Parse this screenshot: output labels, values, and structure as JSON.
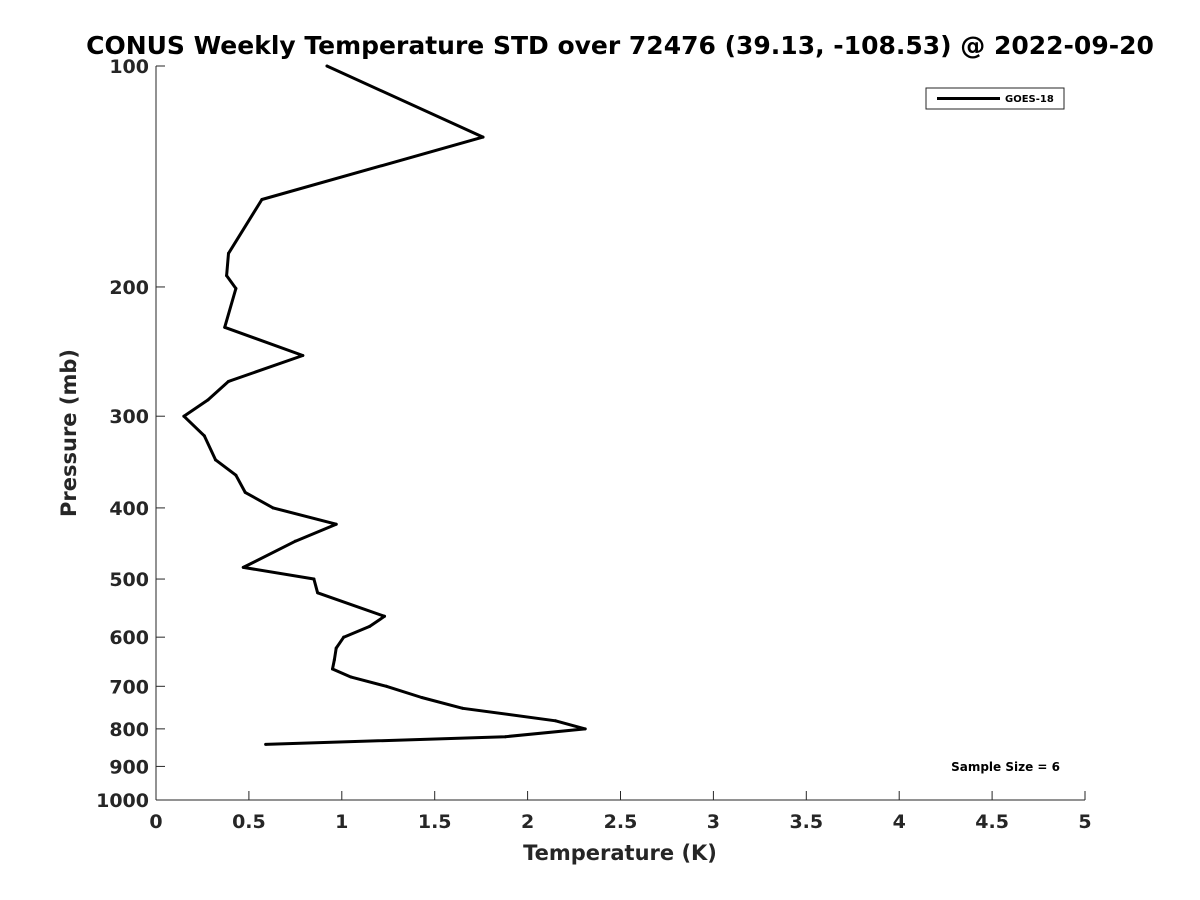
{
  "chart_data": {
    "type": "line",
    "title": "CONUS Weekly Temperature STD over 72476 (39.13, -108.53) @ 2022-09-20",
    "xlabel": "Temperature (K)",
    "ylabel": "Pressure (mb)",
    "xlim": [
      0,
      5
    ],
    "ylim": [
      100,
      1000
    ],
    "y_scale": "log",
    "y_reversed": true,
    "grid": false,
    "legend_position": "top-right",
    "x_ticks": [
      "0",
      "0.5",
      "1",
      "1.5",
      "2",
      "2.5",
      "3",
      "3.5",
      "4",
      "4.5",
      "5"
    ],
    "y_ticks": [
      "100",
      "200",
      "300",
      "400",
      "500",
      "600",
      "700",
      "800",
      "900",
      "1000"
    ],
    "series": [
      {
        "name": "GOES-18",
        "color": "#000000",
        "points": [
          {
            "x": 0.92,
            "y": 100
          },
          {
            "x": 1.76,
            "y": 125
          },
          {
            "x": 0.57,
            "y": 152
          },
          {
            "x": 0.39,
            "y": 180
          },
          {
            "x": 0.38,
            "y": 193
          },
          {
            "x": 0.43,
            "y": 201
          },
          {
            "x": 0.37,
            "y": 227
          },
          {
            "x": 0.79,
            "y": 248
          },
          {
            "x": 0.39,
            "y": 269
          },
          {
            "x": 0.28,
            "y": 285
          },
          {
            "x": 0.15,
            "y": 300
          },
          {
            "x": 0.26,
            "y": 319
          },
          {
            "x": 0.32,
            "y": 344
          },
          {
            "x": 0.43,
            "y": 361
          },
          {
            "x": 0.48,
            "y": 381
          },
          {
            "x": 0.63,
            "y": 400
          },
          {
            "x": 0.97,
            "y": 421
          },
          {
            "x": 0.75,
            "y": 444
          },
          {
            "x": 0.47,
            "y": 482
          },
          {
            "x": 0.85,
            "y": 500
          },
          {
            "x": 0.87,
            "y": 522
          },
          {
            "x": 1.23,
            "y": 562
          },
          {
            "x": 1.15,
            "y": 580
          },
          {
            "x": 1.01,
            "y": 600
          },
          {
            "x": 0.97,
            "y": 621
          },
          {
            "x": 0.96,
            "y": 644
          },
          {
            "x": 0.95,
            "y": 663
          },
          {
            "x": 1.05,
            "y": 680
          },
          {
            "x": 1.24,
            "y": 700
          },
          {
            "x": 1.43,
            "y": 725
          },
          {
            "x": 1.65,
            "y": 750
          },
          {
            "x": 2.15,
            "y": 780
          },
          {
            "x": 2.31,
            "y": 800
          },
          {
            "x": 1.88,
            "y": 820
          },
          {
            "x": 0.59,
            "y": 840
          }
        ]
      }
    ],
    "annotation": "Sample Size = 6"
  }
}
